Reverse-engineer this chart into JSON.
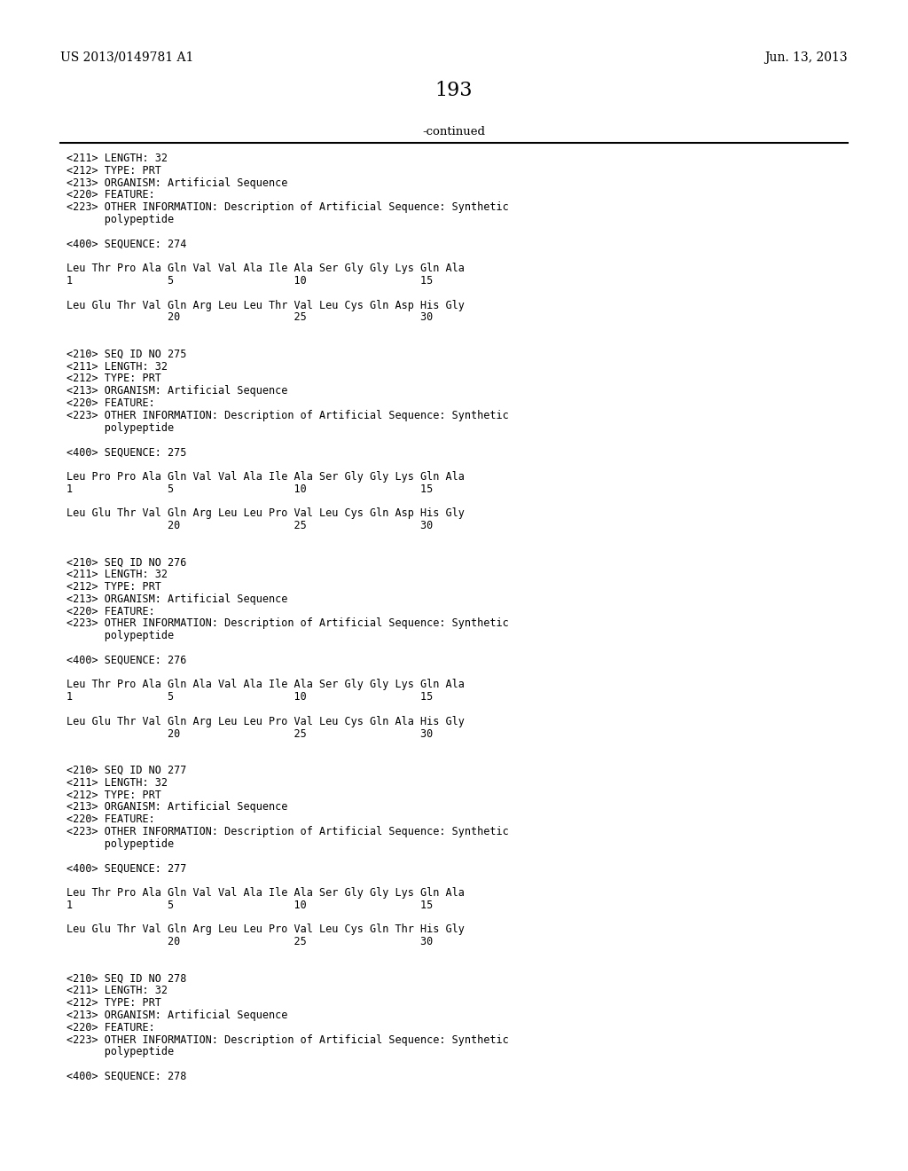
{
  "header_left": "US 2013/0149781 A1",
  "header_right": "Jun. 13, 2013",
  "page_number": "193",
  "continued_label": "-continued",
  "background_color": "#ffffff",
  "text_color": "#000000",
  "content": [
    "<211> LENGTH: 32",
    "<212> TYPE: PRT",
    "<213> ORGANISM: Artificial Sequence",
    "<220> FEATURE:",
    "<223> OTHER INFORMATION: Description of Artificial Sequence: Synthetic",
    "      polypeptide",
    "",
    "<400> SEQUENCE: 274",
    "",
    "Leu Thr Pro Ala Gln Val Val Ala Ile Ala Ser Gly Gly Lys Gln Ala",
    "1               5                   10                  15",
    "",
    "Leu Glu Thr Val Gln Arg Leu Leu Thr Val Leu Cys Gln Asp His Gly",
    "                20                  25                  30",
    "",
    "",
    "<210> SEQ ID NO 275",
    "<211> LENGTH: 32",
    "<212> TYPE: PRT",
    "<213> ORGANISM: Artificial Sequence",
    "<220> FEATURE:",
    "<223> OTHER INFORMATION: Description of Artificial Sequence: Synthetic",
    "      polypeptide",
    "",
    "<400> SEQUENCE: 275",
    "",
    "Leu Pro Pro Ala Gln Val Val Ala Ile Ala Ser Gly Gly Lys Gln Ala",
    "1               5                   10                  15",
    "",
    "Leu Glu Thr Val Gln Arg Leu Leu Pro Val Leu Cys Gln Asp His Gly",
    "                20                  25                  30",
    "",
    "",
    "<210> SEQ ID NO 276",
    "<211> LENGTH: 32",
    "<212> TYPE: PRT",
    "<213> ORGANISM: Artificial Sequence",
    "<220> FEATURE:",
    "<223> OTHER INFORMATION: Description of Artificial Sequence: Synthetic",
    "      polypeptide",
    "",
    "<400> SEQUENCE: 276",
    "",
    "Leu Thr Pro Ala Gln Ala Val Ala Ile Ala Ser Gly Gly Lys Gln Ala",
    "1               5                   10                  15",
    "",
    "Leu Glu Thr Val Gln Arg Leu Leu Pro Val Leu Cys Gln Ala His Gly",
    "                20                  25                  30",
    "",
    "",
    "<210> SEQ ID NO 277",
    "<211> LENGTH: 32",
    "<212> TYPE: PRT",
    "<213> ORGANISM: Artificial Sequence",
    "<220> FEATURE:",
    "<223> OTHER INFORMATION: Description of Artificial Sequence: Synthetic",
    "      polypeptide",
    "",
    "<400> SEQUENCE: 277",
    "",
    "Leu Thr Pro Ala Gln Val Val Ala Ile Ala Ser Gly Gly Lys Gln Ala",
    "1               5                   10                  15",
    "",
    "Leu Glu Thr Val Gln Arg Leu Leu Pro Val Leu Cys Gln Thr His Gly",
    "                20                  25                  30",
    "",
    "",
    "<210> SEQ ID NO 278",
    "<211> LENGTH: 32",
    "<212> TYPE: PRT",
    "<213> ORGANISM: Artificial Sequence",
    "<220> FEATURE:",
    "<223> OTHER INFORMATION: Description of Artificial Sequence: Synthetic",
    "      polypeptide",
    "",
    "<400> SEQUENCE: 278"
  ]
}
